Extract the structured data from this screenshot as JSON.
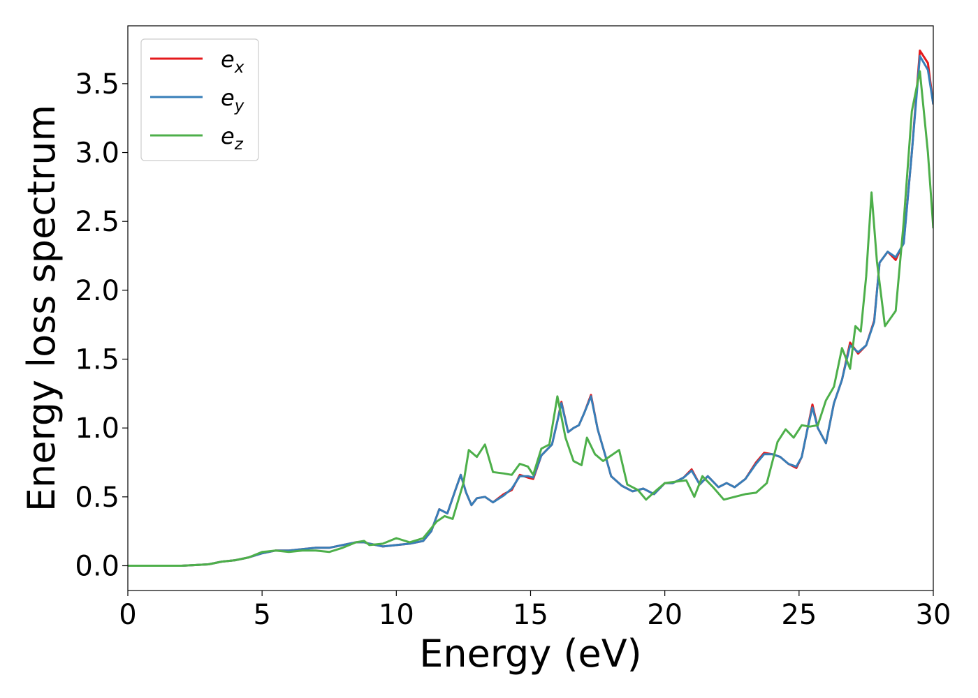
{
  "chart_data": {
    "type": "line",
    "xlabel": "Energy (eV)",
    "ylabel": "Energy loss spectrum",
    "xlim": [
      0,
      30
    ],
    "ylim": [
      -0.18,
      3.92
    ],
    "xticks": [
      0,
      5,
      10,
      15,
      20,
      25,
      30
    ],
    "xtick_labels": [
      "0",
      "5",
      "10",
      "15",
      "20",
      "25",
      "30"
    ],
    "yticks": [
      0.0,
      0.5,
      1.0,
      1.5,
      2.0,
      2.5,
      3.0,
      3.5
    ],
    "ytick_labels": [
      "0.0",
      "0.5",
      "1.0",
      "1.5",
      "2.0",
      "2.5",
      "3.0",
      "3.5"
    ],
    "grid": false,
    "legend_position": "top-left",
    "series": [
      {
        "name": "e_x",
        "label_base": "e",
        "label_sub": "x",
        "color": "#e41a1c",
        "x": [
          0,
          2,
          3,
          3.5,
          4,
          4.5,
          5,
          5.5,
          6,
          6.5,
          7,
          7.5,
          8,
          8.5,
          8.8,
          9,
          9.5,
          10,
          10.5,
          11,
          11.3,
          11.6,
          11.9,
          12.2,
          12.4,
          12.6,
          12.8,
          13,
          13.3,
          13.6,
          14,
          14.3,
          14.6,
          14.9,
          15.1,
          15.4,
          15.8,
          16,
          16.15,
          16.4,
          16.6,
          16.8,
          17,
          17.25,
          17.5,
          17.8,
          18,
          18.4,
          18.8,
          19.2,
          19.6,
          20,
          20.3,
          20.7,
          21,
          21.3,
          21.6,
          22,
          22.3,
          22.6,
          23,
          23.4,
          23.7,
          24,
          24.3,
          24.6,
          24.9,
          25.1,
          25.3,
          25.5,
          25.7,
          26,
          26.3,
          26.6,
          26.9,
          27.2,
          27.5,
          27.8,
          28,
          28.3,
          28.6,
          28.9,
          29.2,
          29.5,
          29.8,
          30
        ],
        "y": [
          0,
          0,
          0.01,
          0.03,
          0.04,
          0.06,
          0.09,
          0.11,
          0.11,
          0.12,
          0.13,
          0.13,
          0.15,
          0.17,
          0.17,
          0.16,
          0.14,
          0.15,
          0.16,
          0.18,
          0.25,
          0.41,
          0.38,
          0.55,
          0.66,
          0.53,
          0.44,
          0.49,
          0.5,
          0.46,
          0.52,
          0.55,
          0.66,
          0.64,
          0.63,
          0.8,
          0.88,
          1.05,
          1.19,
          0.97,
          1,
          1.02,
          1.11,
          1.24,
          0.99,
          0.79,
          0.65,
          0.58,
          0.54,
          0.56,
          0.52,
          0.6,
          0.6,
          0.64,
          0.7,
          0.59,
          0.65,
          0.57,
          0.6,
          0.57,
          0.63,
          0.75,
          0.82,
          0.81,
          0.79,
          0.74,
          0.71,
          0.79,
          0.98,
          1.17,
          1.0,
          0.89,
          1.18,
          1.35,
          1.62,
          1.54,
          1.6,
          1.78,
          2.2,
          2.28,
          2.22,
          2.35,
          3.0,
          3.74,
          3.65,
          3.35
        ]
      },
      {
        "name": "e_y",
        "label_base": "e",
        "label_sub": "y",
        "color": "#377eb8",
        "x": [
          0,
          2,
          3,
          3.5,
          4,
          4.5,
          5,
          5.5,
          6,
          6.5,
          7,
          7.5,
          8,
          8.5,
          8.8,
          9,
          9.5,
          10,
          10.5,
          11,
          11.3,
          11.6,
          11.9,
          12.2,
          12.4,
          12.6,
          12.8,
          13,
          13.3,
          13.6,
          14,
          14.3,
          14.6,
          14.9,
          15.1,
          15.4,
          15.8,
          16,
          16.15,
          16.4,
          16.6,
          16.8,
          17,
          17.25,
          17.5,
          17.8,
          18,
          18.4,
          18.8,
          19.2,
          19.6,
          20,
          20.3,
          20.7,
          21,
          21.3,
          21.6,
          22,
          22.3,
          22.6,
          23,
          23.4,
          23.7,
          24,
          24.3,
          24.6,
          24.9,
          25.1,
          25.3,
          25.5,
          25.7,
          26,
          26.3,
          26.6,
          26.9,
          27.2,
          27.5,
          27.8,
          28,
          28.3,
          28.6,
          28.9,
          29.2,
          29.5,
          29.8,
          30
        ],
        "y": [
          0,
          0,
          0.01,
          0.03,
          0.04,
          0.06,
          0.09,
          0.11,
          0.11,
          0.12,
          0.13,
          0.13,
          0.15,
          0.17,
          0.17,
          0.16,
          0.14,
          0.15,
          0.16,
          0.18,
          0.25,
          0.41,
          0.38,
          0.55,
          0.66,
          0.53,
          0.44,
          0.49,
          0.5,
          0.46,
          0.51,
          0.56,
          0.65,
          0.65,
          0.64,
          0.8,
          0.88,
          1.05,
          1.18,
          0.97,
          1,
          1.02,
          1.11,
          1.23,
          0.99,
          0.79,
          0.65,
          0.58,
          0.54,
          0.56,
          0.52,
          0.6,
          0.6,
          0.64,
          0.69,
          0.59,
          0.65,
          0.57,
          0.6,
          0.57,
          0.63,
          0.74,
          0.81,
          0.81,
          0.79,
          0.74,
          0.72,
          0.79,
          0.98,
          1.15,
          1.0,
          0.89,
          1.18,
          1.35,
          1.6,
          1.55,
          1.6,
          1.77,
          2.2,
          2.28,
          2.24,
          2.34,
          3.0,
          3.7,
          3.6,
          3.35
        ]
      },
      {
        "name": "e_z",
        "label_base": "e",
        "label_sub": "z",
        "color": "#4daf4a",
        "x": [
          0,
          2,
          3,
          3.5,
          4,
          4.5,
          5,
          5.5,
          6,
          6.5,
          7,
          7.5,
          8,
          8.5,
          8.8,
          9,
          9.5,
          10,
          10.5,
          11,
          11.5,
          11.8,
          12.1,
          12.5,
          12.7,
          13,
          13.3,
          13.6,
          14,
          14.3,
          14.6,
          14.9,
          15.1,
          15.4,
          15.7,
          16,
          16.3,
          16.6,
          16.9,
          17.1,
          17.4,
          17.7,
          18.0,
          18.3,
          18.6,
          19,
          19.3,
          19.7,
          20,
          20.4,
          20.8,
          21.1,
          21.4,
          21.8,
          22.2,
          22.6,
          23,
          23.4,
          23.8,
          24.2,
          24.5,
          24.8,
          25.1,
          25.4,
          25.7,
          26,
          26.3,
          26.6,
          26.9,
          27.1,
          27.3,
          27.5,
          27.7,
          27.9,
          28.2,
          28.6,
          28.9,
          29.2,
          29.5,
          29.8,
          30
        ],
        "y": [
          0,
          0,
          0.01,
          0.03,
          0.04,
          0.06,
          0.1,
          0.11,
          0.1,
          0.11,
          0.11,
          0.1,
          0.13,
          0.17,
          0.18,
          0.15,
          0.16,
          0.2,
          0.17,
          0.2,
          0.32,
          0.36,
          0.34,
          0.6,
          0.84,
          0.79,
          0.88,
          0.68,
          0.67,
          0.66,
          0.74,
          0.72,
          0.66,
          0.85,
          0.88,
          1.23,
          0.93,
          0.76,
          0.73,
          0.93,
          0.81,
          0.76,
          0.8,
          0.84,
          0.59,
          0.55,
          0.48,
          0.55,
          0.6,
          0.61,
          0.62,
          0.5,
          0.65,
          0.57,
          0.48,
          0.5,
          0.52,
          0.53,
          0.6,
          0.9,
          0.99,
          0.93,
          1.02,
          1.01,
          1.02,
          1.2,
          1.3,
          1.58,
          1.43,
          1.74,
          1.7,
          2.1,
          2.71,
          2.21,
          1.74,
          1.85,
          2.5,
          3.3,
          3.59,
          3.0,
          2.45
        ]
      }
    ]
  }
}
